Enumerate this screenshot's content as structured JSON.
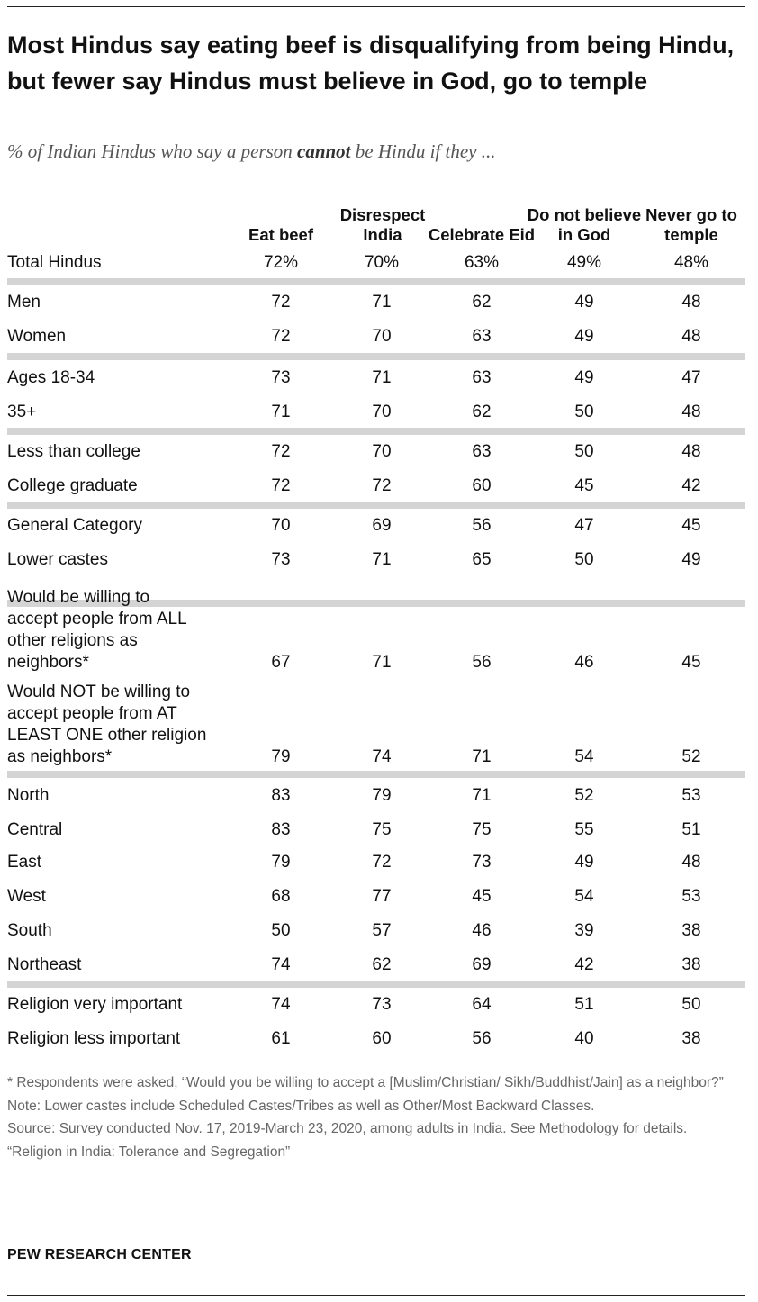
{
  "title": "Most Hindus say eating beef is disqualifying from being Hindu, but fewer say Hindus must believe in God, go to temple",
  "subtitle_pre": "% of Indian Hindus who say a person ",
  "subtitle_emph": "cannot",
  "subtitle_post": " be Hindu if they ...",
  "columns": [
    "Eat beef",
    "Disrespect India",
    "Celebrate Eid",
    "Do not believe in God",
    "Never go to temple"
  ],
  "chart_data": {
    "type": "table",
    "columns": [
      "Eat beef",
      "Disrespect India",
      "Celebrate Eid",
      "Do not believe in God",
      "Never go to temple"
    ],
    "rows": [
      {
        "label": "Total Hindus",
        "values": [
          "72%",
          "70%",
          "63%",
          "49%",
          "48%"
        ]
      },
      {
        "label": "Men",
        "values": [
          "72",
          "71",
          "62",
          "49",
          "48"
        ]
      },
      {
        "label": "Women",
        "values": [
          "72",
          "70",
          "63",
          "49",
          "48"
        ]
      },
      {
        "label": "Ages 18-34",
        "values": [
          "73",
          "71",
          "63",
          "49",
          "47"
        ]
      },
      {
        "label": "35+",
        "values": [
          "71",
          "70",
          "62",
          "50",
          "48"
        ]
      },
      {
        "label": "Less than college",
        "values": [
          "72",
          "70",
          "63",
          "50",
          "48"
        ]
      },
      {
        "label": "College graduate",
        "values": [
          "72",
          "72",
          "60",
          "45",
          "42"
        ]
      },
      {
        "label": "General Category",
        "values": [
          "70",
          "69",
          "56",
          "47",
          "45"
        ]
      },
      {
        "label": "Lower castes",
        "values": [
          "73",
          "71",
          "65",
          "50",
          "49"
        ]
      },
      {
        "label": "Would be willing to\naccept people from ALL\nother religions as\nneighbors*",
        "values": [
          "67",
          "71",
          "56",
          "46",
          "45"
        ]
      },
      {
        "label": "Would NOT be willing to\naccept people from AT\nLEAST ONE other religion\nas neighbors*",
        "values": [
          "79",
          "74",
          "71",
          "54",
          "52"
        ]
      },
      {
        "label": "North",
        "values": [
          "83",
          "79",
          "71",
          "52",
          "53"
        ]
      },
      {
        "label": "Central",
        "values": [
          "83",
          "75",
          "75",
          "55",
          "51"
        ]
      },
      {
        "label": "East",
        "values": [
          "79",
          "72",
          "73",
          "49",
          "48"
        ]
      },
      {
        "label": "West",
        "values": [
          "68",
          "77",
          "45",
          "54",
          "53"
        ]
      },
      {
        "label": "South",
        "values": [
          "50",
          "57",
          "46",
          "39",
          "38"
        ]
      },
      {
        "label": "Northeast",
        "values": [
          "74",
          "62",
          "69",
          "42",
          "38"
        ]
      },
      {
        "label": "Religion very important",
        "values": [
          "74",
          "73",
          "64",
          "51",
          "50"
        ]
      },
      {
        "label": "Religion less important",
        "values": [
          "61",
          "60",
          "56",
          "40",
          "38"
        ]
      }
    ]
  },
  "notes": {
    "asterisk": "* Respondents were asked, “Would you be willing to accept a [Muslim/Christian/ Sikh/Buddhist/Jain] as a neighbor?”",
    "note": "Note: Lower castes include Scheduled Castes/Tribes as well as Other/Most Backward Classes.",
    "source": "Source: Survey conducted Nov. 17, 2019-March 23, 2020, among adults in India. See Methodology for details.",
    "report": "“Religion in India: Tolerance and Segregation”"
  },
  "brand": "PEW RESEARCH CENTER"
}
